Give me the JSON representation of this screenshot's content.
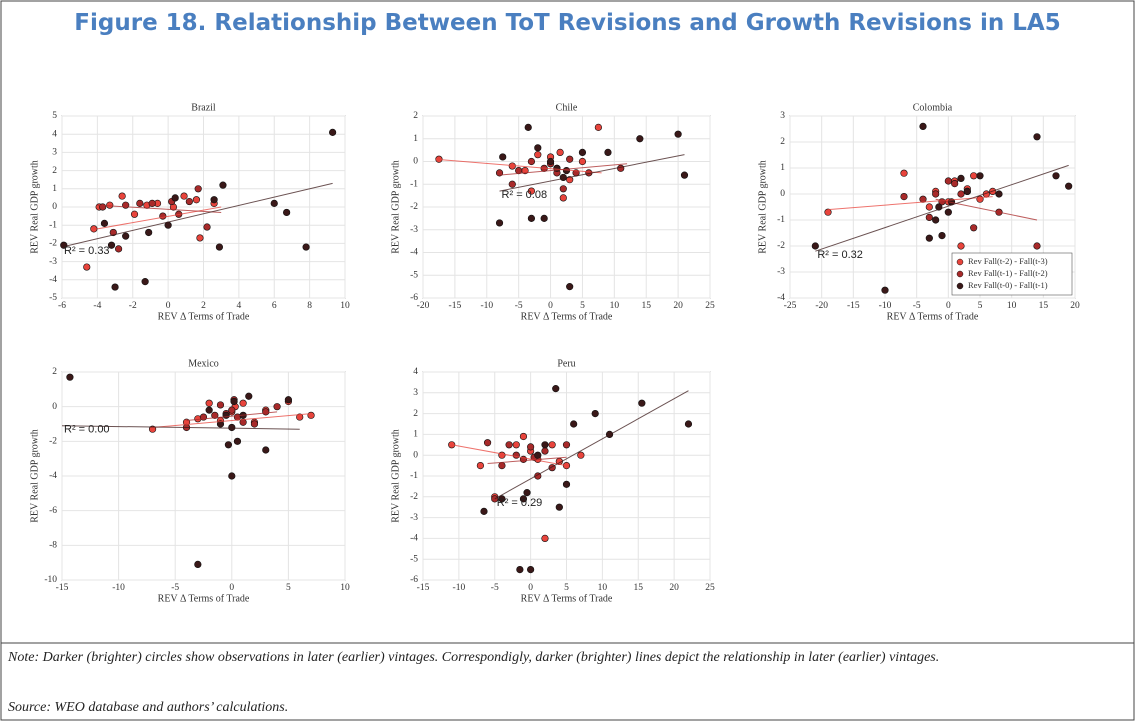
{
  "title": "Figure 18. Relationship Between ToT Revisions and Growth Revisions in LA5",
  "chart_data": [
    {
      "type": "scatter",
      "title": "Brazil",
      "xlabel": "REV Δ Terms of Trade",
      "ylabel": "REV Real GDP growth",
      "annotation": "R² = 0.33",
      "grid": true,
      "xlim": [
        -6,
        10
      ],
      "xticks": [
        -6,
        -4,
        -2,
        0,
        2,
        4,
        6,
        8,
        10
      ],
      "ylim": [
        -5,
        5
      ],
      "yticks": [
        -5,
        -4,
        -3,
        -2,
        -1,
        0,
        1,
        2,
        3,
        4,
        5
      ],
      "series": [
        {
          "color": "#e8443c",
          "x": [
            -4.6,
            -3.9,
            -3.3,
            -2.6,
            -1.9,
            -1.2,
            -0.6,
            0.3,
            0.9,
            1.6,
            1.8,
            2.6,
            -4.2
          ],
          "values": [
            -3.3,
            0,
            0.1,
            0.6,
            -0.4,
            0.1,
            0.2,
            0,
            0.6,
            0.4,
            -1.7,
            0.2,
            -1.2
          ],
          "fit": {
            "x": [
              -4,
              3
            ],
            "y": [
              -1.2,
              0
            ]
          }
        },
        {
          "color": "#a82a2a",
          "x": [
            -3.7,
            -3.1,
            -2.4,
            -1.6,
            -0.9,
            -0.3,
            0.2,
            1.2,
            1.7,
            2.2,
            -2.8,
            0.6
          ],
          "values": [
            0,
            -1.4,
            0.1,
            0.2,
            0.2,
            -0.5,
            0.3,
            0.3,
            1,
            -1.1,
            -2.3,
            -0.4
          ],
          "fit": {
            "x": [
              -4,
              3
            ],
            "y": [
              0.1,
              -0.3
            ]
          }
        },
        {
          "color": "#3a1818",
          "x": [
            -5.9,
            -3.6,
            -3.2,
            -3,
            -1.3,
            -1.1,
            0,
            0.4,
            2.9,
            3.1,
            6,
            6.7,
            7.8,
            9.3,
            -2.4,
            2.6
          ],
          "values": [
            -2.1,
            -0.9,
            -2.1,
            -4.4,
            -4.1,
            -1.4,
            -1,
            0.5,
            -2.2,
            1.2,
            0.2,
            -0.3,
            -2.2,
            4.1,
            -1.6,
            0.4
          ],
          "fit": {
            "x": [
              -6,
              9.3
            ],
            "y": [
              -2.2,
              1.3
            ]
          }
        }
      ]
    },
    {
      "type": "scatter",
      "title": "Chile",
      "xlabel": "REV Δ Terms of Trade",
      "ylabel": "REV Real GDP growth",
      "annotation": "R² = 0.08",
      "grid": true,
      "xlim": [
        -20,
        25
      ],
      "xticks": [
        -20,
        -15,
        -10,
        -5,
        0,
        5,
        10,
        15,
        20,
        25
      ],
      "ylim": [
        -6,
        2
      ],
      "yticks": [
        -6,
        -5,
        -4,
        -3,
        -2,
        -1,
        0,
        1,
        2
      ],
      "series": [
        {
          "color": "#e8443c",
          "x": [
            -17.5,
            -6,
            -4,
            -2,
            0,
            1,
            2,
            3,
            5,
            7.5,
            -3,
            1.5
          ],
          "values": [
            0.1,
            -0.2,
            -0.4,
            0.3,
            0.2,
            -0.3,
            -1.6,
            -0.8,
            0,
            1.5,
            -1.3,
            0.4
          ],
          "fit": {
            "x": [
              -18,
              8
            ],
            "y": [
              0.1,
              -0.5
            ]
          }
        },
        {
          "color": "#a82a2a",
          "x": [
            -8,
            -5,
            -3,
            -1,
            0,
            1,
            2,
            4,
            6,
            11,
            -6,
            3
          ],
          "values": [
            -0.5,
            -0.4,
            0,
            -0.3,
            -0.1,
            -0.5,
            -1.2,
            -0.5,
            -0.5,
            -0.3,
            -1,
            0.1
          ],
          "fit": {
            "x": [
              -8,
              12
            ],
            "y": [
              -0.6,
              -0.1
            ]
          }
        },
        {
          "color": "#3a1818",
          "x": [
            -8,
            -7.5,
            -3.5,
            -3,
            -1,
            0,
            1,
            2,
            3,
            5,
            9,
            14,
            20,
            21,
            -2,
            2.5
          ],
          "values": [
            -2.7,
            0.2,
            1.5,
            -2.5,
            -2.5,
            0,
            -0.3,
            -0.7,
            -5.5,
            0.4,
            0.4,
            1,
            1.2,
            -0.6,
            0.6,
            -0.4
          ],
          "fit": {
            "x": [
              -8,
              21
            ],
            "y": [
              -1.3,
              0.3
            ]
          }
        }
      ]
    },
    {
      "type": "scatter",
      "title": "Colombia",
      "xlabel": "REV Δ Terms of Trade",
      "ylabel": "REV Real GDP growth",
      "annotation": "R² = 0.32",
      "grid": true,
      "legend": "lower right",
      "xlim": [
        -25,
        20
      ],
      "xticks": [
        -25,
        -20,
        -15,
        -10,
        -5,
        0,
        5,
        10,
        15,
        20
      ],
      "ylim": [
        -4,
        3
      ],
      "yticks": [
        -4,
        -3,
        -2,
        -1,
        0,
        1,
        2,
        3
      ],
      "series": [
        {
          "name": "Rev Fall(t-2) - Fall(t-3)",
          "color": "#e8443c",
          "x": [
            -19,
            -7,
            -2,
            0,
            1,
            3,
            5,
            7,
            -3,
            2,
            4,
            6
          ],
          "values": [
            -0.7,
            0.8,
            0.1,
            -0.3,
            0.5,
            0.2,
            -0.2,
            0.1,
            -0.5,
            -2,
            0.7,
            0
          ],
          "fit": {
            "x": [
              -19,
              7
            ],
            "y": [
              -0.6,
              -0.1
            ]
          }
        },
        {
          "name": "Rev Fall(t-1) - Fall(t-2)",
          "color": "#a82a2a",
          "x": [
            -7,
            -4,
            -2,
            -1,
            0,
            1,
            2,
            3,
            4,
            8,
            14,
            -3
          ],
          "values": [
            -0.1,
            -0.2,
            0,
            -0.3,
            0.5,
            0.4,
            0,
            0.1,
            -1.3,
            -0.7,
            -2,
            -0.9
          ],
          "fit": {
            "x": [
              -2,
              14
            ],
            "y": [
              -0.2,
              -1
            ]
          }
        },
        {
          "name": "Rev Fall(t-0) - Fall(t-1)",
          "color": "#3a1818",
          "x": [
            -21,
            -10,
            -4,
            -3,
            -2,
            -1,
            0,
            0.5,
            2,
            3,
            5,
            8,
            14,
            17,
            19,
            -1.5
          ],
          "values": [
            -2,
            -3.7,
            2.6,
            -1.7,
            -1,
            -1.6,
            -0.7,
            -0.3,
            0.6,
            0.1,
            0.7,
            0,
            2.2,
            0.7,
            0.3,
            -0.5
          ],
          "fit": {
            "x": [
              -21,
              19
            ],
            "y": [
              -2.2,
              1.1
            ]
          }
        }
      ]
    },
    {
      "type": "scatter",
      "title": "Mexico",
      "xlabel": "REV Δ Terms of Trade",
      "ylabel": "REV Real GDP growth",
      "annotation": "R² = 0.00",
      "grid": true,
      "xlim": [
        -15,
        10
      ],
      "xticks": [
        -15,
        -10,
        -5,
        0,
        5,
        10
      ],
      "ylim": [
        -10,
        2
      ],
      "yticks": [
        -10,
        -8,
        -6,
        -4,
        -2,
        0,
        2
      ],
      "series": [
        {
          "color": "#e8443c",
          "x": [
            -7,
            -4,
            -3,
            -2,
            -1,
            0,
            0.3,
            1,
            2,
            3,
            5,
            6,
            7
          ],
          "values": [
            -1.3,
            -0.9,
            -0.7,
            0.2,
            -0.8,
            -0.3,
            0,
            0.2,
            -0.9,
            -0.2,
            0.3,
            -0.6,
            -0.5
          ],
          "fit": {
            "x": [
              -7,
              7
            ],
            "y": [
              -1.2,
              -0.4
            ]
          }
        },
        {
          "color": "#a82a2a",
          "x": [
            -4,
            -2.5,
            -1.5,
            -0.5,
            0,
            0.5,
            1,
            2,
            3,
            4,
            -1,
            0.2
          ],
          "values": [
            -1.2,
            -0.6,
            -0.5,
            -0.4,
            -0.2,
            -0.6,
            -0.9,
            -1,
            -0.3,
            0,
            0.1,
            0.4
          ],
          "fit": {
            "x": [
              -4,
              4
            ],
            "y": [
              -0.8,
              -0.3
            ]
          }
        },
        {
          "color": "#3a1818",
          "x": [
            -14.3,
            -3,
            -2,
            -1,
            -0.5,
            0,
            0.2,
            0.5,
            1,
            1.5,
            3,
            5,
            0,
            -0.3
          ],
          "values": [
            1.7,
            -9.1,
            -0.2,
            -1,
            -0.5,
            -4,
            0.3,
            -2,
            -0.5,
            0.6,
            -2.5,
            0.4,
            -1.2,
            -2.2
          ],
          "fit": {
            "x": [
              -15,
              6
            ],
            "y": [
              -1.1,
              -1.3
            ]
          }
        }
      ]
    },
    {
      "type": "scatter",
      "title": "Peru",
      "xlabel": "REV Δ Terms of Trade",
      "ylabel": "REV Real GDP growth",
      "annotation": "R² = 0.29",
      "grid": true,
      "xlim": [
        -15,
        25
      ],
      "xticks": [
        -15,
        -10,
        -5,
        0,
        5,
        10,
        15,
        20,
        25
      ],
      "ylim": [
        -6,
        4
      ],
      "yticks": [
        -6,
        -5,
        -4,
        -3,
        -2,
        -1,
        0,
        1,
        2,
        3,
        4
      ],
      "series": [
        {
          "color": "#e8443c",
          "x": [
            -11,
            -7,
            -5,
            -4,
            -2,
            -1,
            0,
            1,
            2,
            3,
            4,
            5,
            7
          ],
          "values": [
            0.5,
            -0.5,
            -2,
            0,
            0.5,
            0.9,
            0.2,
            -0.2,
            -4,
            0.5,
            -0.3,
            -0.5,
            0
          ],
          "fit": {
            "x": [
              -11,
              5
            ],
            "y": [
              0.5,
              -0.5
            ]
          }
        },
        {
          "color": "#a82a2a",
          "x": [
            -6,
            -4,
            -3,
            -2,
            -1,
            0,
            1,
            2,
            3,
            5,
            -5,
            0.5
          ],
          "values": [
            0.6,
            -0.5,
            0.5,
            0,
            -0.2,
            0.4,
            -1,
            0.2,
            -0.6,
            0.5,
            -2.1,
            -0.1
          ],
          "fit": {
            "x": [
              -6,
              5
            ],
            "y": [
              -0.4,
              -0.1
            ]
          }
        },
        {
          "color": "#3a1818",
          "x": [
            -6.5,
            -4,
            -1.5,
            -1,
            0,
            1,
            2,
            3.5,
            4,
            5,
            6,
            9,
            11,
            15.5,
            22,
            -0.5
          ],
          "values": [
            -2.7,
            -2.1,
            -5.5,
            -2.1,
            -5.5,
            0,
            0.5,
            3.2,
            -2.5,
            -1.4,
            1.5,
            2,
            1,
            2.5,
            1.5,
            -1.8
          ],
          "fit": {
            "x": [
              -5,
              22
            ],
            "y": [
              -2.1,
              3.1
            ]
          }
        }
      ]
    }
  ],
  "note": "Note: Darker (brighter) circles show observations in later (earlier) vintages. Correspondigly, darker (brighter) lines depict the relationship in later (earlier) vintages.",
  "source": "Source: WEO database and authors’ calculations."
}
